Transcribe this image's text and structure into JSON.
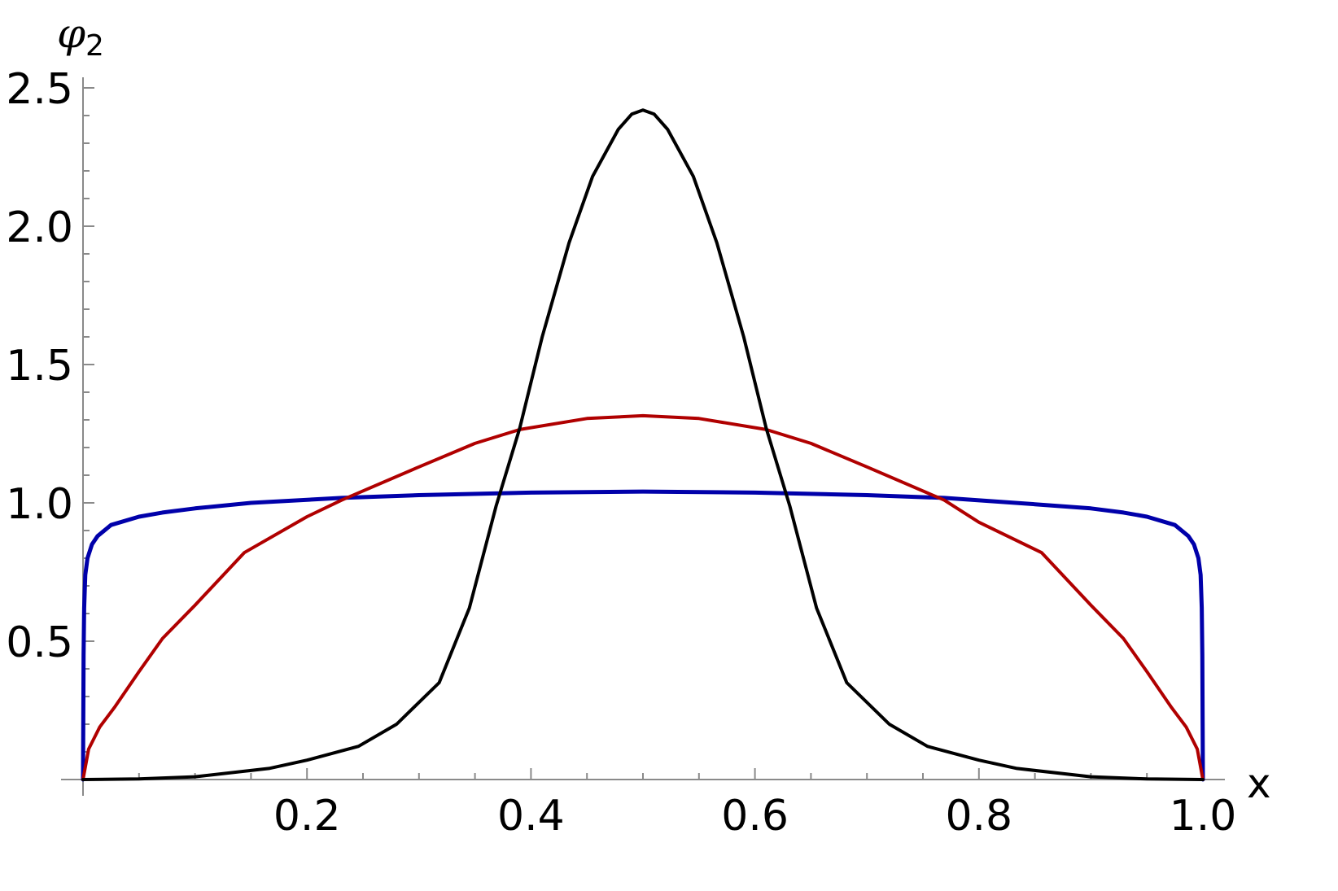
{
  "chart_data": {
    "type": "line",
    "title": "",
    "xlabel": "x",
    "ylabel": "φ2",
    "ylabel_main": "φ",
    "ylabel_sub": "2",
    "xlim": [
      0,
      1.0
    ],
    "ylim": [
      0,
      2.5
    ],
    "grid": false,
    "legend": null,
    "x_ticks": [
      0.2,
      0.4,
      0.6,
      0.8,
      1.0
    ],
    "x_tick_labels": [
      "0.2",
      "0.4",
      "0.6",
      "0.8",
      "1.0"
    ],
    "y_ticks": [
      0.5,
      1.0,
      1.5,
      2.0,
      2.5
    ],
    "y_tick_labels": [
      "0.5",
      "1.0",
      "1.5",
      "2.0",
      "2.5"
    ],
    "series": [
      {
        "name": "blue",
        "color": "#0000aa",
        "width": 5,
        "x": [
          0,
          0.0005,
          0.001,
          0.002,
          0.004,
          0.008,
          0.013,
          0.025,
          0.05,
          0.071,
          0.1,
          0.15,
          0.231,
          0.3,
          0.4,
          0.5,
          0.6,
          0.7,
          0.769,
          0.85,
          0.9,
          0.929,
          0.95,
          0.975,
          0.987,
          0.992,
          0.996,
          0.998,
          0.999,
          0.9995,
          1.0
        ],
        "values": [
          0,
          0.45,
          0.62,
          0.74,
          0.8,
          0.85,
          0.88,
          0.92,
          0.95,
          0.965,
          0.98,
          1.0,
          1.018,
          1.028,
          1.037,
          1.041,
          1.037,
          1.028,
          1.018,
          0.995,
          0.98,
          0.965,
          0.95,
          0.92,
          0.88,
          0.85,
          0.8,
          0.74,
          0.62,
          0.45,
          0
        ]
      },
      {
        "name": "red",
        "color": "#b00000",
        "width": 4,
        "x": [
          0,
          0.005,
          0.015,
          0.028,
          0.05,
          0.071,
          0.1,
          0.144,
          0.2,
          0.231,
          0.3,
          0.35,
          0.39,
          0.45,
          0.5,
          0.55,
          0.61,
          0.65,
          0.7,
          0.769,
          0.8,
          0.856,
          0.9,
          0.929,
          0.95,
          0.972,
          0.985,
          0.995,
          1.0
        ],
        "values": [
          0,
          0.11,
          0.19,
          0.26,
          0.39,
          0.51,
          0.63,
          0.82,
          0.95,
          1.01,
          1.13,
          1.215,
          1.265,
          1.305,
          1.315,
          1.305,
          1.265,
          1.215,
          1.13,
          1.01,
          0.93,
          0.82,
          0.63,
          0.51,
          0.39,
          0.26,
          0.19,
          0.11,
          0
        ]
      },
      {
        "name": "black",
        "color": "#000000",
        "width": 4,
        "x": [
          0,
          0.05,
          0.1,
          0.166,
          0.2,
          0.246,
          0.28,
          0.318,
          0.345,
          0.369,
          0.39,
          0.41,
          0.434,
          0.455,
          0.478,
          0.49,
          0.5,
          0.51,
          0.522,
          0.545,
          0.566,
          0.59,
          0.61,
          0.631,
          0.655,
          0.682,
          0.72,
          0.754,
          0.8,
          0.834,
          0.9,
          0.95,
          1.0
        ],
        "values": [
          0,
          0.002,
          0.01,
          0.04,
          0.07,
          0.12,
          0.2,
          0.35,
          0.62,
          0.99,
          1.27,
          1.6,
          1.94,
          2.18,
          2.35,
          2.405,
          2.42,
          2.405,
          2.35,
          2.18,
          1.94,
          1.6,
          1.27,
          0.99,
          0.62,
          0.35,
          0.2,
          0.12,
          0.07,
          0.04,
          0.01,
          0.002,
          0
        ]
      }
    ]
  }
}
